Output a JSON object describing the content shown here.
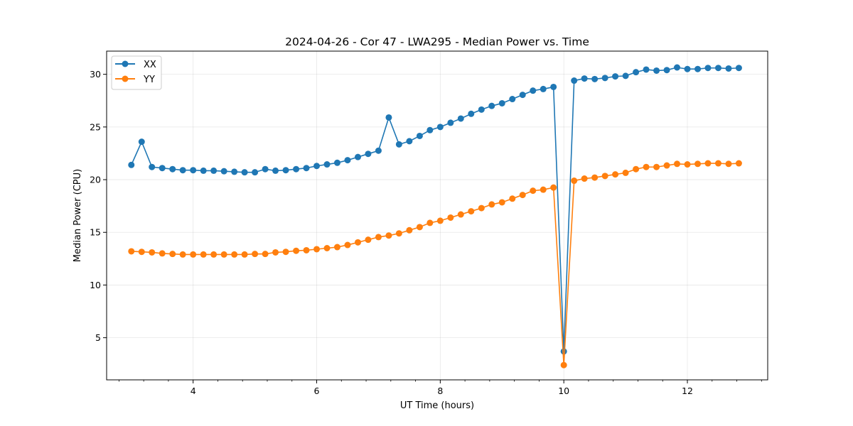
{
  "chart_data": {
    "type": "line",
    "title": "2024-04-26 - Cor 47 - LWA295 - Median Power vs. Time",
    "xlabel": "UT Time (hours)",
    "ylabel": "Median Power (CPU)",
    "xlim": [
      2.6,
      13.3
    ],
    "ylim": [
      1.0,
      32.2
    ],
    "xticks": [
      4,
      6,
      8,
      10,
      12
    ],
    "xminor_step": 0.4,
    "yticks": [
      5,
      10,
      15,
      20,
      25,
      30
    ],
    "grid": true,
    "legend_position": "upper-left",
    "x": [
      3.0,
      3.167,
      3.333,
      3.5,
      3.667,
      3.833,
      4.0,
      4.167,
      4.333,
      4.5,
      4.667,
      4.833,
      5.0,
      5.167,
      5.333,
      5.5,
      5.667,
      5.833,
      6.0,
      6.167,
      6.333,
      6.5,
      6.667,
      6.833,
      7.0,
      7.167,
      7.333,
      7.5,
      7.667,
      7.833,
      8.0,
      8.167,
      8.333,
      8.5,
      8.667,
      8.833,
      9.0,
      9.167,
      9.333,
      9.5,
      9.667,
      9.833,
      10.0,
      10.167,
      10.333,
      10.5,
      10.667,
      10.833,
      11.0,
      11.167,
      11.333,
      11.5,
      11.667,
      11.833,
      12.0,
      12.167,
      12.333,
      12.5,
      12.667,
      12.833
    ],
    "series": [
      {
        "name": "XX",
        "color": "#1f77b4",
        "values": [
          21.4,
          23.6,
          21.2,
          21.1,
          21.0,
          20.9,
          20.9,
          20.85,
          20.85,
          20.8,
          20.75,
          20.7,
          20.7,
          21.0,
          20.85,
          20.9,
          21.0,
          21.1,
          21.3,
          21.45,
          21.6,
          21.85,
          22.15,
          22.45,
          22.75,
          25.9,
          23.35,
          23.65,
          24.15,
          24.7,
          25.0,
          25.4,
          25.8,
          26.25,
          26.65,
          27.0,
          27.25,
          27.65,
          28.05,
          28.45,
          28.6,
          28.8,
          3.7,
          29.4,
          29.6,
          29.55,
          29.65,
          29.8,
          29.85,
          30.2,
          30.45,
          30.35,
          30.4,
          30.65,
          30.5,
          30.5,
          30.6,
          30.6,
          30.55,
          30.6
        ]
      },
      {
        "name": "YY",
        "color": "#ff7f0e",
        "values": [
          13.2,
          13.15,
          13.1,
          13.0,
          12.95,
          12.9,
          12.9,
          12.9,
          12.9,
          12.9,
          12.9,
          12.9,
          12.95,
          12.95,
          13.1,
          13.15,
          13.25,
          13.3,
          13.4,
          13.5,
          13.6,
          13.8,
          14.05,
          14.3,
          14.55,
          14.7,
          14.9,
          15.2,
          15.5,
          15.9,
          16.1,
          16.4,
          16.7,
          17.0,
          17.3,
          17.65,
          17.85,
          18.2,
          18.55,
          18.95,
          19.05,
          19.25,
          2.4,
          19.9,
          20.1,
          20.2,
          20.35,
          20.5,
          20.65,
          21.0,
          21.2,
          21.2,
          21.35,
          21.5,
          21.45,
          21.5,
          21.55,
          21.55,
          21.5,
          21.55
        ]
      }
    ]
  }
}
